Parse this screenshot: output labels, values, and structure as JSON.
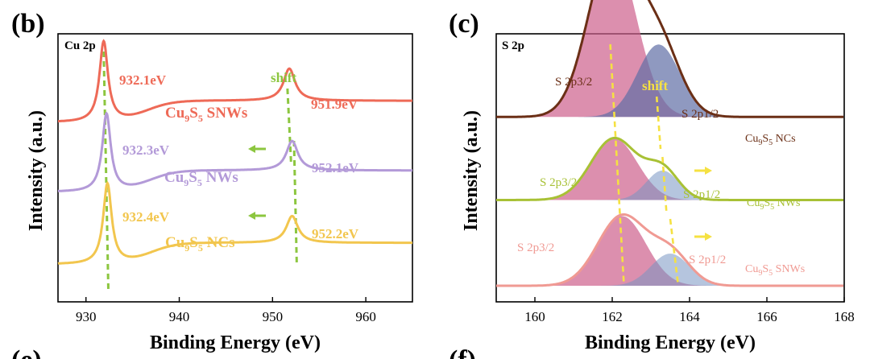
{
  "chart_data": [
    {
      "type": "line",
      "panel": "(b)",
      "title": "Cu 2p",
      "xlabel": "Binding Energy (eV)",
      "ylabel": "Intensity (a.u.)",
      "xlim": [
        927,
        965
      ],
      "x_ticks": [
        930,
        940,
        950,
        960
      ],
      "series": [
        {
          "name": "Cu9S5 SNWs",
          "label_main": "Cu",
          "label_sub1": "9",
          "label_mid": "S",
          "label_sub2": "5",
          "label_tail": " SNWs",
          "color": "#ee6a57",
          "offset": 0.67,
          "peaks": [
            {
              "center": 931.9,
              "height": 0.3,
              "width": 0.55
            },
            {
              "center": 951.8,
              "height": 0.12,
              "width": 0.75
            }
          ],
          "step": 0.08,
          "step_center": 936.5
        },
        {
          "name": "Cu9S5 NWs",
          "label_main": "Cu",
          "label_sub1": "9",
          "label_mid": "S",
          "label_sub2": "5",
          "label_tail": " NWs",
          "color": "#b39ad8",
          "offset": 0.41,
          "peaks": [
            {
              "center": 932.2,
              "height": 0.29,
              "width": 0.55
            },
            {
              "center": 952.1,
              "height": 0.11,
              "width": 0.75
            }
          ],
          "step": 0.08,
          "step_center": 936.8
        },
        {
          "name": "Cu9S5 NCs",
          "label_main": "Cu",
          "label_sub1": "9",
          "label_mid": "S",
          "label_sub2": "5",
          "label_tail": " NCs",
          "color": "#f2c64e",
          "offset": 0.14,
          "peaks": [
            {
              "center": 932.3,
              "height": 0.3,
              "width": 0.55
            },
            {
              "center": 952.1,
              "height": 0.1,
              "width": 0.75
            }
          ],
          "step": 0.08,
          "step_center": 936.9
        }
      ],
      "annotations": {
        "peak_labels": [
          "932.1eV",
          "951.9eV",
          "932.3eV",
          "952.1eV",
          "932.4eV",
          "952.2eV"
        ],
        "shift": "shift",
        "shift_color": "#8cc63f"
      }
    },
    {
      "type": "area",
      "panel": "(c)",
      "title": "S 2p",
      "xlabel": "Binding Energy (eV)",
      "ylabel": "Intensity (a.u.)",
      "xlim": [
        159,
        168
      ],
      "x_ticks": [
        160,
        162,
        164,
        166,
        168
      ],
      "series": [
        {
          "name": "Cu9S5 NCs",
          "label_main": "Cu",
          "label_sub1": "9",
          "label_mid": "S",
          "label_sub2": "5",
          "label_tail": " NCs",
          "color": "#6b2f16",
          "offset": 0.69,
          "components": [
            {
              "name": "S 2p3/2",
              "center": 162.0,
              "height": 0.62,
              "width": 0.62
            },
            {
              "name": "S 2p1/2",
              "center": 163.2,
              "height": 0.27,
              "width": 0.55
            }
          ]
        },
        {
          "name": "Cu9S5 NWs",
          "label_main": "Cu",
          "label_sub1": "9",
          "label_mid": "S",
          "label_sub2": "5",
          "label_tail": " NWs",
          "color": "#a8c135",
          "offset": 0.38,
          "components": [
            {
              "name": "S 2p3/2",
              "center": 162.05,
              "height": 0.23,
              "width": 0.6
            },
            {
              "name": "S 2p1/2",
              "center": 163.3,
              "height": 0.11,
              "width": 0.42
            }
          ]
        },
        {
          "name": "Cu9S5 SNWs",
          "label_main": "Cu",
          "label_sub1": "9",
          "label_mid": "S",
          "label_sub2": "5",
          "label_tail": " SNWs",
          "color": "#f09a93",
          "offset": 0.06,
          "components": [
            {
              "name": "S 2p3/2",
              "center": 162.25,
              "height": 0.26,
              "width": 0.62
            },
            {
              "name": "S 2p1/2",
              "center": 163.5,
              "height": 0.12,
              "width": 0.5
            }
          ]
        }
      ],
      "annotations": {
        "component_labels": [
          "S 2p3/2",
          "S 2p1/2",
          "S 2p3/2",
          "S 2p1/2",
          "S 2p3/2",
          "S 2p1/2"
        ],
        "shift": "shift",
        "shift_color": "#f5e142"
      }
    }
  ],
  "panel_letters": [
    "(e)",
    "(f)"
  ]
}
